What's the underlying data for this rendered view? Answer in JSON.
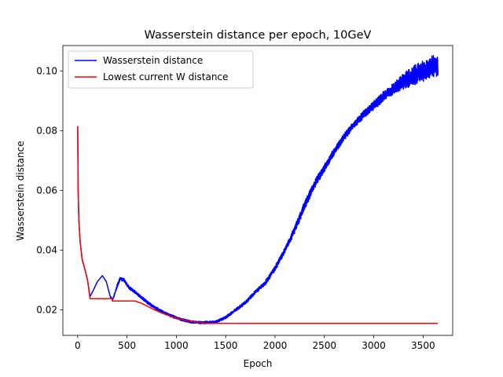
{
  "chart_data": {
    "type": "line",
    "title": "Wasserstein distance per epoch, 10GeV",
    "xlabel": "Epoch",
    "ylabel": "Wasserstein distance",
    "xlim": [
      -150,
      3800
    ],
    "ylim": [
      0.0115,
      0.1085
    ],
    "xticks": [
      0,
      500,
      1000,
      1500,
      2000,
      2500,
      3000,
      3500
    ],
    "yticks": [
      0.02,
      0.04,
      0.06,
      0.08,
      0.1
    ],
    "ytick_labels": [
      "0.02",
      "0.04",
      "0.06",
      "0.08",
      "0.10"
    ],
    "grid": false,
    "legend_position": "top-left",
    "series": [
      {
        "name": "Wasserstein distance",
        "color": "#0000ff",
        "points": [
          [
            0,
            0.0815
          ],
          [
            5,
            0.06
          ],
          [
            12,
            0.05
          ],
          [
            25,
            0.043
          ],
          [
            45,
            0.037
          ],
          [
            70,
            0.034
          ],
          [
            100,
            0.03
          ],
          [
            125,
            0.0245
          ],
          [
            150,
            0.026
          ],
          [
            200,
            0.0295
          ],
          [
            250,
            0.0315
          ],
          [
            290,
            0.0295
          ],
          [
            330,
            0.0245
          ],
          [
            355,
            0.0235
          ],
          [
            400,
            0.028
          ],
          [
            430,
            0.0305
          ],
          [
            470,
            0.03
          ],
          [
            520,
            0.0275
          ],
          [
            580,
            0.026
          ],
          [
            650,
            0.024
          ],
          [
            750,
            0.0215
          ],
          [
            850,
            0.0195
          ],
          [
            950,
            0.018
          ],
          [
            1050,
            0.0168
          ],
          [
            1150,
            0.016
          ],
          [
            1250,
            0.0158
          ],
          [
            1320,
            0.0158
          ],
          [
            1400,
            0.016
          ],
          [
            1500,
            0.0175
          ],
          [
            1600,
            0.02
          ],
          [
            1700,
            0.0225
          ],
          [
            1800,
            0.026
          ],
          [
            1900,
            0.029
          ],
          [
            2000,
            0.034
          ],
          [
            2100,
            0.04
          ],
          [
            2200,
            0.047
          ],
          [
            2300,
            0.055
          ],
          [
            2400,
            0.062
          ],
          [
            2500,
            0.0675
          ],
          [
            2600,
            0.073
          ],
          [
            2700,
            0.078
          ],
          [
            2800,
            0.082
          ],
          [
            2900,
            0.0855
          ],
          [
            3000,
            0.0885
          ],
          [
            3100,
            0.0915
          ],
          [
            3200,
            0.094
          ],
          [
            3300,
            0.0965
          ],
          [
            3400,
            0.0985
          ],
          [
            3500,
            0.1
          ],
          [
            3600,
            0.1015
          ],
          [
            3650,
            0.102
          ]
        ],
        "noise_amplitude": [
          [
            0,
            0.0
          ],
          [
            300,
            0.0
          ],
          [
            400,
            0.0006
          ],
          [
            1200,
            0.0004
          ],
          [
            1800,
            0.0006
          ],
          [
            2300,
            0.0015
          ],
          [
            2800,
            0.0012
          ],
          [
            3200,
            0.002
          ],
          [
            3400,
            0.0035
          ],
          [
            3650,
            0.004
          ]
        ]
      },
      {
        "name": "Lowest current W distance",
        "color": "#ff0000",
        "points": [
          [
            0,
            0.0815
          ],
          [
            5,
            0.06
          ],
          [
            12,
            0.05
          ],
          [
            25,
            0.043
          ],
          [
            45,
            0.037
          ],
          [
            70,
            0.034
          ],
          [
            100,
            0.03
          ],
          [
            125,
            0.0238
          ],
          [
            350,
            0.0238
          ],
          [
            351,
            0.023
          ],
          [
            580,
            0.023
          ],
          [
            650,
            0.0222
          ],
          [
            750,
            0.0205
          ],
          [
            850,
            0.019
          ],
          [
            950,
            0.0178
          ],
          [
            1050,
            0.0168
          ],
          [
            1150,
            0.0162
          ],
          [
            1250,
            0.0157
          ],
          [
            1320,
            0.0155
          ],
          [
            3650,
            0.0155
          ]
        ]
      }
    ]
  }
}
